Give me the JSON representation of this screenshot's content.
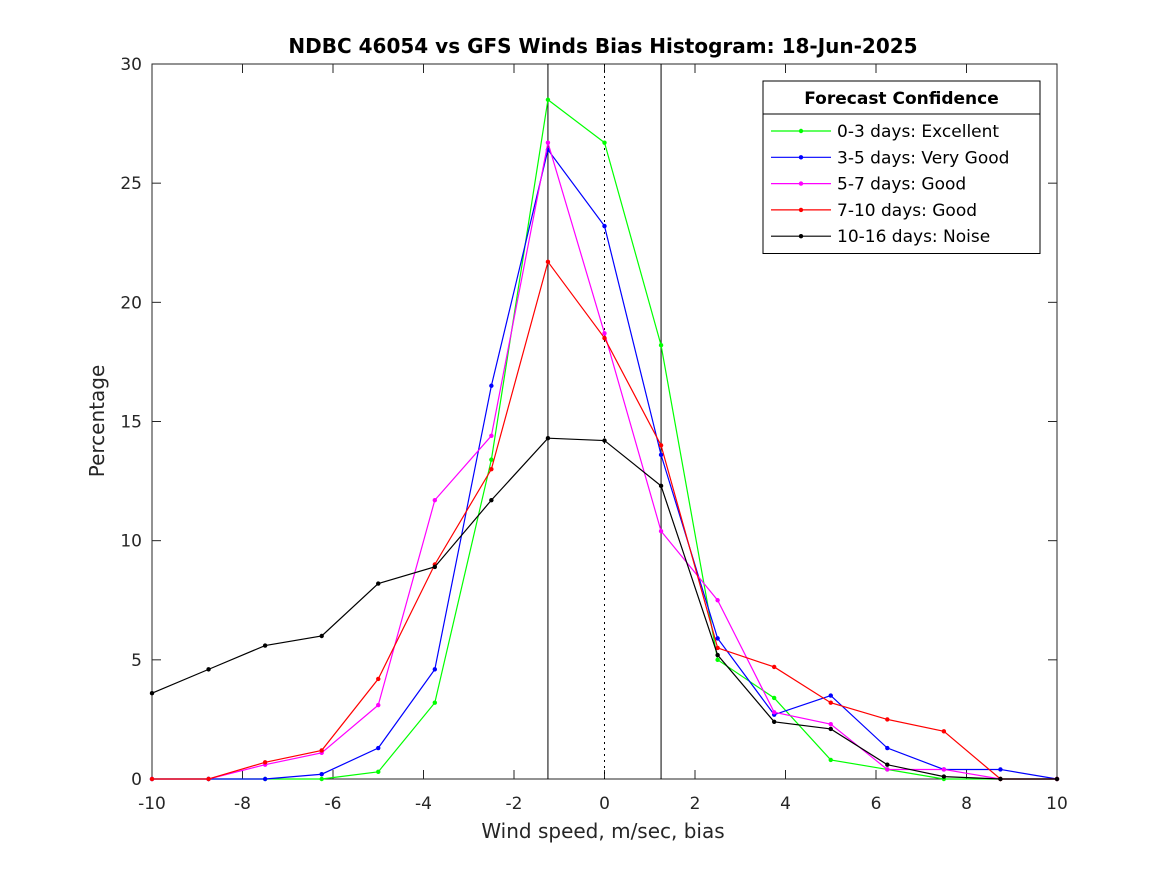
{
  "chart_data": {
    "type": "line",
    "title": "NDBC 46054 vs GFS Winds Bias Histogram: 18-Jun-2025",
    "xlabel": "Wind speed, m/sec, bias",
    "ylabel": "Percentage",
    "xlim": [
      -10,
      10
    ],
    "ylim": [
      0,
      30
    ],
    "xticks": [
      -10,
      -8,
      -6,
      -4,
      -2,
      0,
      2,
      4,
      6,
      8,
      10
    ],
    "yticks": [
      0,
      5,
      10,
      15,
      20,
      25,
      30
    ],
    "grid": false,
    "legend": {
      "title": "Forecast Confidence",
      "placement": "top-right"
    },
    "reference_lines": [
      {
        "x": -1.25,
        "style": "solid"
      },
      {
        "x": 0,
        "style": "dotted"
      },
      {
        "x": 1.25,
        "style": "solid"
      }
    ],
    "x": [
      -10,
      -8.75,
      -7.5,
      -6.25,
      -5,
      -3.75,
      -2.5,
      -1.25,
      0,
      1.25,
      2.5,
      3.75,
      5,
      6.25,
      7.5,
      8.75,
      10
    ],
    "series": [
      {
        "name": "0-3 days: Excellent",
        "color": "#00ff00",
        "values": [
          0,
          0,
          0,
          0,
          0.3,
          3.2,
          13.4,
          28.5,
          26.7,
          18.2,
          5.0,
          3.4,
          0.8,
          0.4,
          0,
          0,
          0
        ]
      },
      {
        "name": "3-5 days: Very Good",
        "color": "#0000ff",
        "values": [
          0,
          0,
          0,
          0.2,
          1.3,
          4.6,
          16.5,
          26.4,
          23.2,
          13.6,
          5.9,
          2.7,
          3.5,
          1.3,
          0.4,
          0.4,
          0
        ]
      },
      {
        "name": "5-7 days: Good",
        "color": "#ff00ff",
        "values": [
          0,
          0,
          0.6,
          1.1,
          3.1,
          11.7,
          14.4,
          26.7,
          18.7,
          10.4,
          7.5,
          2.8,
          2.3,
          0.4,
          0.4,
          0,
          0
        ]
      },
      {
        "name": "7-10 days: Good",
        "color": "#ff0000",
        "values": [
          0,
          0,
          0.7,
          1.2,
          4.2,
          9.0,
          13.0,
          21.7,
          18.5,
          14.0,
          5.5,
          4.7,
          3.2,
          2.5,
          2.0,
          0,
          0
        ]
      },
      {
        "name": "10-16 days: Noise",
        "color": "#000000",
        "values": [
          3.6,
          4.6,
          5.6,
          6.0,
          8.2,
          8.9,
          11.7,
          14.3,
          14.2,
          12.3,
          5.2,
          2.4,
          2.1,
          0.6,
          0.1,
          0,
          0
        ]
      }
    ]
  }
}
